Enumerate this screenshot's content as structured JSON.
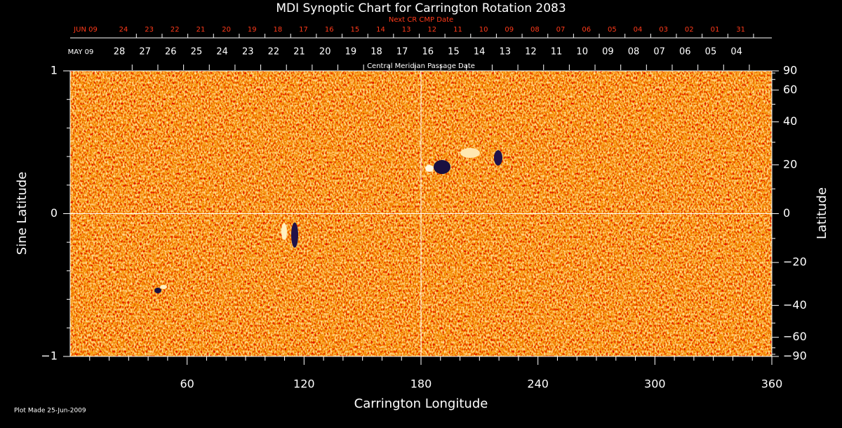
{
  "chart_data": {
    "type": "image",
    "title": "MDI Synoptic Chart for Carrington Rotation 2083",
    "xlabel": "Carrington Longitude",
    "ylabel": "Sine Latitude",
    "y2label": "Latitude",
    "footnote": "Plot Made 25-Jun-2009",
    "xlim": [
      0,
      360
    ],
    "xticks": [
      60,
      120,
      180,
      240,
      300,
      360
    ],
    "xminorticks": [
      10,
      20,
      30,
      40,
      50,
      70,
      80,
      90,
      100,
      110,
      130,
      140,
      150,
      160,
      170,
      190,
      200,
      210,
      220,
      230,
      250,
      260,
      270,
      280,
      290,
      310,
      320,
      330,
      340,
      350
    ],
    "ylim": [
      -1,
      1
    ],
    "yticks": [
      {
        "value": -1,
        "label": "−1"
      },
      0,
      1
    ],
    "yminorticks": [
      -0.8,
      -0.6,
      -0.4,
      -0.2,
      0.2,
      0.4,
      0.6,
      0.8
    ],
    "y2scale": "sine",
    "y2lim": [
      -90,
      90
    ],
    "y2ticks": [
      90,
      60,
      40,
      20,
      0,
      {
        "value": -20,
        "label": "−20"
      },
      {
        "value": -40,
        "label": "−40"
      },
      {
        "value": -60,
        "label": "−60"
      },
      {
        "value": -90,
        "label": "−90"
      }
    ],
    "y2minorticks": [
      80,
      70,
      50,
      30,
      10,
      -10,
      -30,
      -50,
      -70,
      -80
    ],
    "crosshair": [
      180,
      0
    ],
    "date_axes": [
      {
        "title": "Next CR CMP Date",
        "color": "#ff3a1a",
        "start_label": "JUN 09",
        "labels": [
          "24",
          "23",
          "22",
          "21",
          "20",
          "19",
          "18",
          "17",
          "16",
          "15",
          "14",
          "13",
          "12",
          "11",
          "10",
          "09",
          "08",
          "07",
          "06",
          "05",
          "04",
          "03",
          "02",
          "01",
          "31"
        ]
      },
      {
        "title": "Central Meridian Passage Date",
        "color": "#ffffff",
        "start_label": "MAY 09",
        "labels": [
          "28",
          "27",
          "26",
          "25",
          "24",
          "23",
          "22",
          "21",
          "20",
          "19",
          "18",
          "17",
          "16",
          "15",
          "14",
          "13",
          "12",
          "11",
          "10",
          "09",
          "08",
          "07",
          "06",
          "05",
          "04"
        ]
      }
    ]
  }
}
